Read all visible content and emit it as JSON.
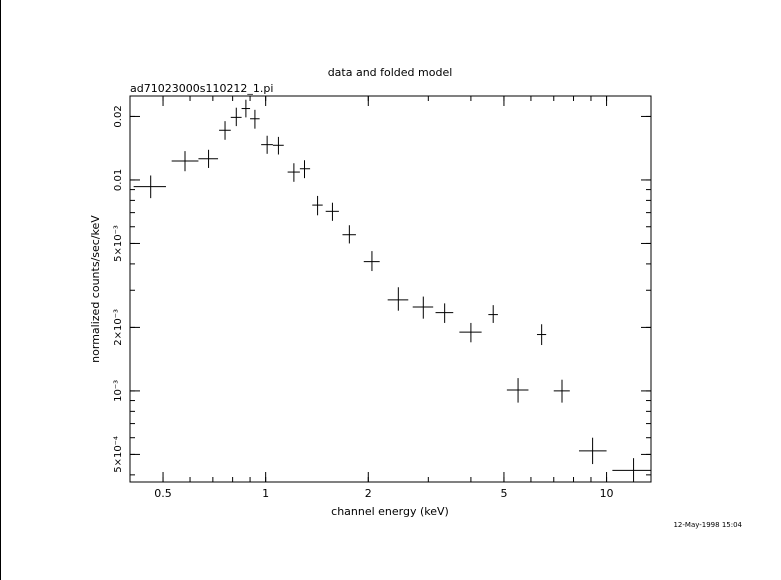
{
  "chart_data": {
    "type": "scatter",
    "title": "data and folded model",
    "subtitle": "ad71023000s110212_1.pi",
    "xlabel": "channel energy (keV)",
    "ylabel": "normalized counts/sec/keV",
    "xscale": "log",
    "yscale": "log",
    "xlim": [
      0.4,
      13.5
    ],
    "ylim": [
      0.00037,
      0.025
    ],
    "grid": false,
    "x_ticks": [
      {
        "value": 0.5,
        "label": "0.5"
      },
      {
        "value": 1,
        "label": "1"
      },
      {
        "value": 2,
        "label": "2"
      },
      {
        "value": 5,
        "label": "5"
      },
      {
        "value": 10,
        "label": "10"
      }
    ],
    "y_ticks": [
      {
        "value": 0.0005,
        "label": "5×10⁻⁴"
      },
      {
        "value": 0.001,
        "label": "10⁻³"
      },
      {
        "value": 0.002,
        "label": "2×10⁻³"
      },
      {
        "value": 0.005,
        "label": "5×10⁻³"
      },
      {
        "value": 0.01,
        "label": "0.01"
      },
      {
        "value": 0.02,
        "label": "0.02"
      }
    ],
    "points": [
      {
        "x": 0.46,
        "xerr": [
          0.41,
          0.51
        ],
        "y": 0.0093,
        "yerr": [
          0.0082,
          0.0105
        ]
      },
      {
        "x": 0.58,
        "xerr": [
          0.53,
          0.635
        ],
        "y": 0.0123,
        "yerr": [
          0.011,
          0.0137
        ]
      },
      {
        "x": 0.68,
        "xerr": [
          0.635,
          0.725
        ],
        "y": 0.0126,
        "yerr": [
          0.0114,
          0.0139
        ]
      },
      {
        "x": 0.76,
        "xerr": [
          0.73,
          0.79
        ],
        "y": 0.0172,
        "yerr": [
          0.0155,
          0.019
        ]
      },
      {
        "x": 0.82,
        "xerr": [
          0.79,
          0.85
        ],
        "y": 0.0198,
        "yerr": [
          0.018,
          0.022
        ]
      },
      {
        "x": 0.875,
        "xerr": [
          0.85,
          0.9
        ],
        "y": 0.0218,
        "yerr": [
          0.0198,
          0.024
        ]
      },
      {
        "x": 0.93,
        "xerr": [
          0.9,
          0.96
        ],
        "y": 0.0195,
        "yerr": [
          0.0175,
          0.0215
        ]
      },
      {
        "x": 1.01,
        "xerr": [
          0.97,
          1.05
        ],
        "y": 0.0147,
        "yerr": [
          0.0133,
          0.0162
        ]
      },
      {
        "x": 1.09,
        "xerr": [
          1.05,
          1.13
        ],
        "y": 0.0146,
        "yerr": [
          0.0132,
          0.016
        ]
      },
      {
        "x": 1.21,
        "xerr": [
          1.16,
          1.26
        ],
        "y": 0.0109,
        "yerr": [
          0.0098,
          0.012
        ]
      },
      {
        "x": 1.3,
        "xerr": [
          1.26,
          1.35
        ],
        "y": 0.0113,
        "yerr": [
          0.0102,
          0.0124
        ]
      },
      {
        "x": 1.42,
        "xerr": [
          1.37,
          1.47
        ],
        "y": 0.0076,
        "yerr": [
          0.0068,
          0.0084
        ]
      },
      {
        "x": 1.57,
        "xerr": [
          1.5,
          1.64
        ],
        "y": 0.0071,
        "yerr": [
          0.0064,
          0.0078
        ]
      },
      {
        "x": 1.76,
        "xerr": [
          1.68,
          1.84
        ],
        "y": 0.0055,
        "yerr": [
          0.005,
          0.0061
        ]
      },
      {
        "x": 2.05,
        "xerr": [
          1.94,
          2.16
        ],
        "y": 0.0041,
        "yerr": [
          0.0037,
          0.0046
        ]
      },
      {
        "x": 2.45,
        "xerr": [
          2.28,
          2.62
        ],
        "y": 0.0027,
        "yerr": [
          0.0024,
          0.0031
        ]
      },
      {
        "x": 2.9,
        "xerr": [
          2.7,
          3.1
        ],
        "y": 0.0025,
        "yerr": [
          0.0022,
          0.0028
        ]
      },
      {
        "x": 3.35,
        "xerr": [
          3.15,
          3.55
        ],
        "y": 0.00235,
        "yerr": [
          0.0021,
          0.0026
        ]
      },
      {
        "x": 4.0,
        "xerr": [
          3.7,
          4.3
        ],
        "y": 0.0019,
        "yerr": [
          0.0017,
          0.0021
        ]
      },
      {
        "x": 4.65,
        "xerr": [
          4.5,
          4.8
        ],
        "y": 0.0023,
        "yerr": [
          0.0021,
          0.00255
        ]
      },
      {
        "x": 5.5,
        "xerr": [
          5.1,
          5.9
        ],
        "y": 0.00101,
        "yerr": [
          0.00088,
          0.00115
        ]
      },
      {
        "x": 6.45,
        "xerr": [
          6.25,
          6.65
        ],
        "y": 0.00185,
        "yerr": [
          0.00165,
          0.00207
        ]
      },
      {
        "x": 7.4,
        "xerr": [
          7.0,
          7.8
        ],
        "y": 0.001,
        "yerr": [
          0.00088,
          0.00113
        ]
      },
      {
        "x": 9.1,
        "xerr": [
          8.3,
          10.0
        ],
        "y": 0.00052,
        "yerr": [
          0.00045,
          0.0006
        ]
      },
      {
        "x": 12.0,
        "xerr": [
          10.4,
          13.5
        ],
        "y": 0.00042,
        "yerr": [
          0.00037,
          0.00048
        ]
      }
    ]
  },
  "timestamp": "12-May-1998 15:04"
}
